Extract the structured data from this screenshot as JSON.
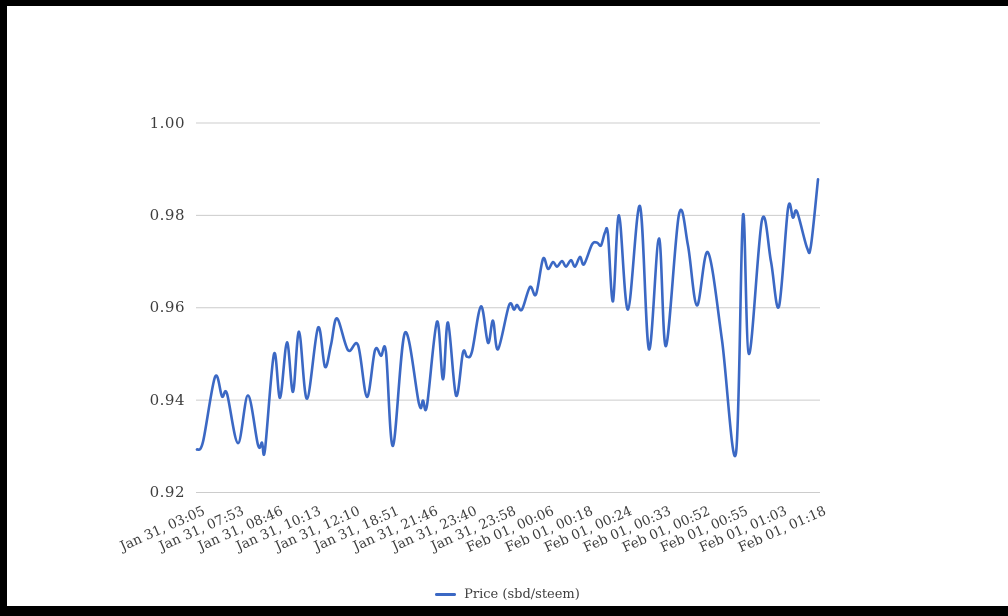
{
  "page": {
    "background": "#ffffff",
    "frame_color": "#000000"
  },
  "legend": {
    "label": "Price (sbd/steem)"
  },
  "chart_data": {
    "type": "line",
    "title": "",
    "xlabel": "",
    "ylabel": "",
    "series_name": "Price (sbd/steem)",
    "line_color": "#3b68c4",
    "grid_color": "#cccccc",
    "label_color": "#3d3d3d",
    "grid": true,
    "legend_position": "bottom",
    "ylim": [
      0.92,
      1.0
    ],
    "y_tick_labels": [
      "1.00",
      "0.98",
      "0.96",
      "0.94",
      "0.92"
    ],
    "x_tick_labels": [
      "Jan 31, 03:05",
      "Jan 31, 07:53",
      "Jan 31, 08:46",
      "Jan 31, 10:13",
      "Jan 31, 12:10",
      "Jan 31, 18:51",
      "Jan 31, 21:46",
      "Jan 31, 23:40",
      "Jan 31, 23:58",
      "Feb 01, 00:06",
      "Feb 01, 00:18",
      "Feb 01, 00:24",
      "Feb 01, 00:33",
      "Feb 01, 00:52",
      "Feb 01, 00:55",
      "Feb 01, 01:03",
      "Feb 01, 01:18"
    ],
    "points": [
      [
        0.0,
        0.9293
      ],
      [
        0.0097,
        0.931
      ],
      [
        0.029,
        0.945
      ],
      [
        0.0403,
        0.9408
      ],
      [
        0.0483,
        0.9414
      ],
      [
        0.066,
        0.9307
      ],
      [
        0.0821,
        0.941
      ],
      [
        0.0982,
        0.9303
      ],
      [
        0.1047,
        0.9308
      ],
      [
        0.1095,
        0.9293
      ],
      [
        0.124,
        0.95
      ],
      [
        0.1337,
        0.9405
      ],
      [
        0.1449,
        0.9525
      ],
      [
        0.1546,
        0.9418
      ],
      [
        0.1643,
        0.9548
      ],
      [
        0.1771,
        0.9403
      ],
      [
        0.1949,
        0.9557
      ],
      [
        0.2061,
        0.9472
      ],
      [
        0.2158,
        0.952
      ],
      [
        0.2254,
        0.9577
      ],
      [
        0.2432,
        0.9508
      ],
      [
        0.2593,
        0.9519
      ],
      [
        0.2737,
        0.9407
      ],
      [
        0.2866,
        0.9508
      ],
      [
        0.2963,
        0.9496
      ],
      [
        0.3043,
        0.9504
      ],
      [
        0.3156,
        0.9301
      ],
      [
        0.3349,
        0.9546
      ],
      [
        0.3575,
        0.9392
      ],
      [
        0.3639,
        0.9399
      ],
      [
        0.3704,
        0.9389
      ],
      [
        0.3865,
        0.957
      ],
      [
        0.3961,
        0.9445
      ],
      [
        0.4042,
        0.9568
      ],
      [
        0.4171,
        0.941
      ],
      [
        0.4283,
        0.9503
      ],
      [
        0.4348,
        0.9494
      ],
      [
        0.4428,
        0.9505
      ],
      [
        0.4573,
        0.9603
      ],
      [
        0.4686,
        0.9524
      ],
      [
        0.4766,
        0.9572
      ],
      [
        0.4847,
        0.951
      ],
      [
        0.5024,
        0.9605
      ],
      [
        0.5105,
        0.9596
      ],
      [
        0.5153,
        0.9606
      ],
      [
        0.5233,
        0.9596
      ],
      [
        0.5362,
        0.9645
      ],
      [
        0.5459,
        0.9629
      ],
      [
        0.5572,
        0.9706
      ],
      [
        0.5652,
        0.9684
      ],
      [
        0.5733,
        0.9699
      ],
      [
        0.5797,
        0.9689
      ],
      [
        0.5878,
        0.9701
      ],
      [
        0.5942,
        0.9689
      ],
      [
        0.6022,
        0.9703
      ],
      [
        0.6087,
        0.9689
      ],
      [
        0.6167,
        0.971
      ],
      [
        0.6232,
        0.9694
      ],
      [
        0.6361,
        0.9737
      ],
      [
        0.6441,
        0.9741
      ],
      [
        0.6506,
        0.9735
      ],
      [
        0.657,
        0.9763
      ],
      [
        0.6618,
        0.9759
      ],
      [
        0.6699,
        0.9614
      ],
      [
        0.6795,
        0.98
      ],
      [
        0.694,
        0.9596
      ],
      [
        0.7133,
        0.982
      ],
      [
        0.7278,
        0.951
      ],
      [
        0.7439,
        0.975
      ],
      [
        0.7552,
        0.9517
      ],
      [
        0.7761,
        0.9802
      ],
      [
        0.7906,
        0.9735
      ],
      [
        0.8051,
        0.9605
      ],
      [
        0.8228,
        0.972
      ],
      [
        0.8454,
        0.953
      ],
      [
        0.8679,
        0.9285
      ],
      [
        0.8792,
        0.98
      ],
      [
        0.8889,
        0.95
      ],
      [
        0.9098,
        0.979
      ],
      [
        0.9243,
        0.97
      ],
      [
        0.9372,
        0.9603
      ],
      [
        0.9517,
        0.9815
      ],
      [
        0.9597,
        0.9795
      ],
      [
        0.9662,
        0.9808
      ],
      [
        0.9823,
        0.973
      ],
      [
        0.9887,
        0.9735
      ],
      [
        1.0,
        0.9878
      ]
    ]
  }
}
